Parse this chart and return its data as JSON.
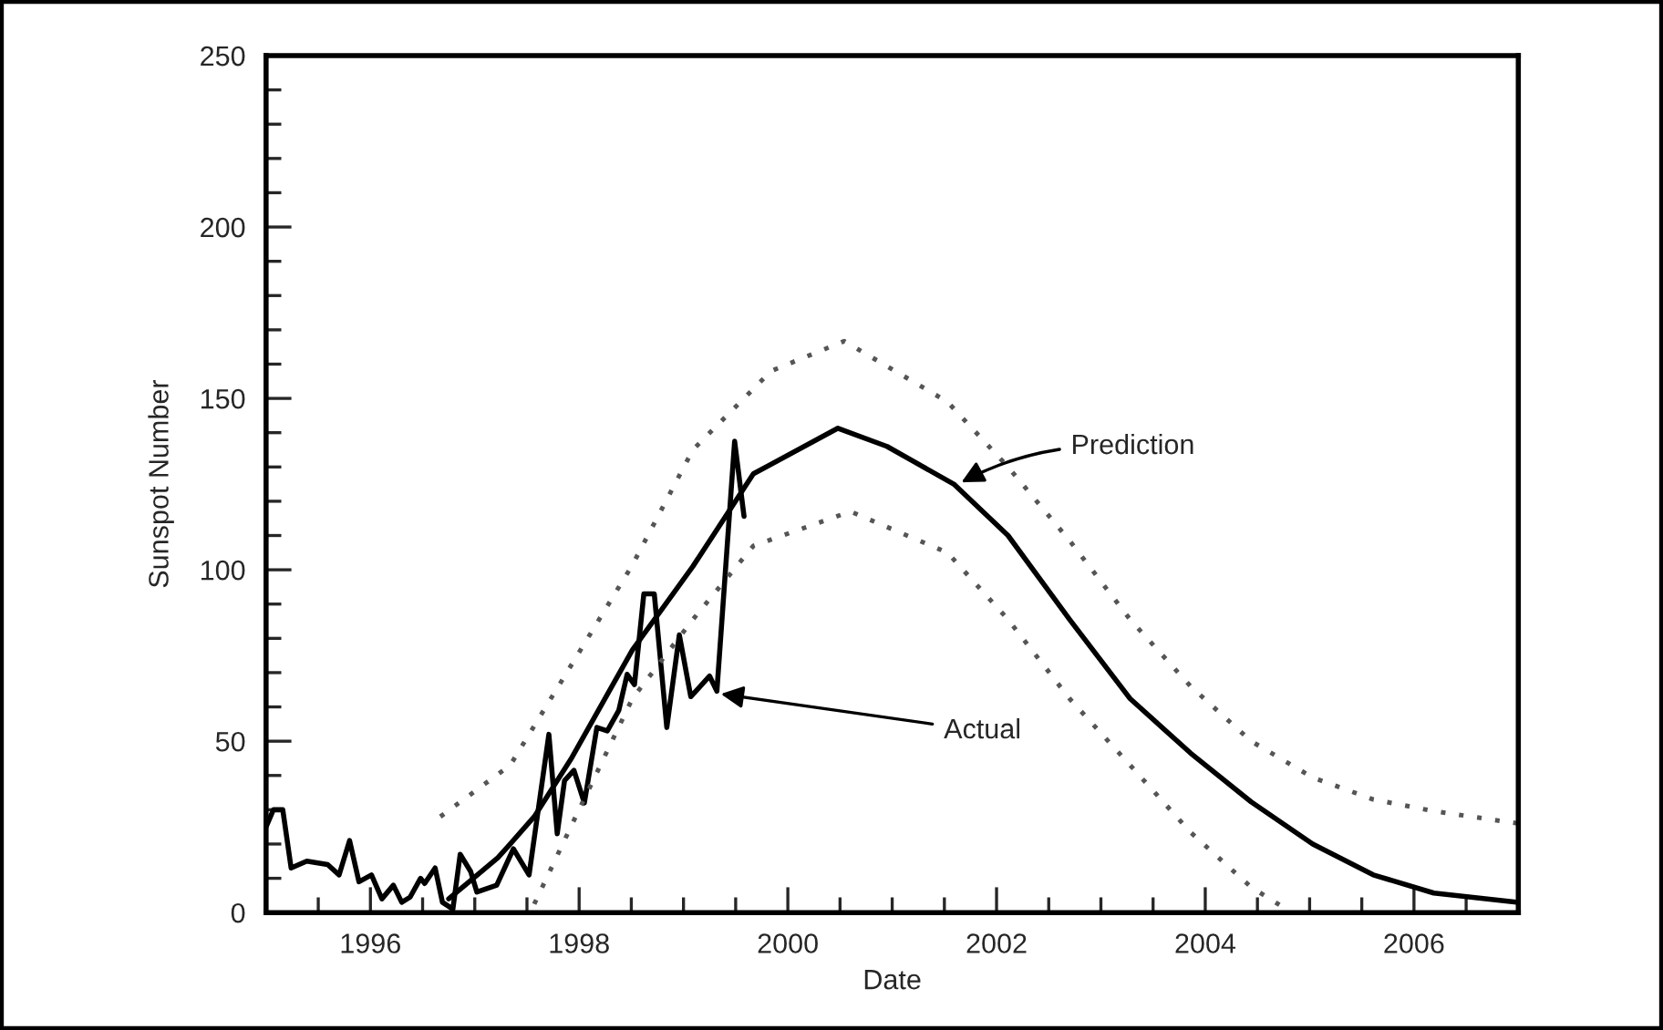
{
  "chart_data": {
    "type": "line",
    "xlabel": "Date",
    "ylabel": "Sunspot Number",
    "xlim": [
      1995,
      2007
    ],
    "ylim": [
      0,
      250
    ],
    "xticks": [
      {
        "value": 1995.5,
        "label": null
      },
      1996,
      {
        "value": 1996.5,
        "label": null
      },
      {
        "value": 1997,
        "label": null
      },
      {
        "value": 1997.5,
        "label": null
      },
      1998,
      {
        "value": 1998.5,
        "label": null
      },
      {
        "value": 1999,
        "label": null
      },
      {
        "value": 1999.5,
        "label": null
      },
      2000,
      {
        "value": 2000.5,
        "label": null
      },
      {
        "value": 2001,
        "label": null
      },
      {
        "value": 2001.5,
        "label": null
      },
      2002,
      {
        "value": 2002.5,
        "label": null
      },
      {
        "value": 2003,
        "label": null
      },
      {
        "value": 2003.5,
        "label": null
      },
      2004,
      {
        "value": 2004.5,
        "label": null
      },
      {
        "value": 2005,
        "label": null
      },
      {
        "value": 2005.5,
        "label": null
      },
      2006,
      {
        "value": 2006.5,
        "label": null
      }
    ],
    "yticks": [
      0,
      {
        "value": 10,
        "label": null
      },
      {
        "value": 20,
        "label": null
      },
      {
        "value": 30,
        "label": null
      },
      {
        "value": 40,
        "label": null
      },
      50,
      {
        "value": 60,
        "label": null
      },
      {
        "value": 70,
        "label": null
      },
      {
        "value": 80,
        "label": null
      },
      {
        "value": 90,
        "label": null
      },
      100,
      {
        "value": 110,
        "label": null
      },
      {
        "value": 120,
        "label": null
      },
      {
        "value": 130,
        "label": null
      },
      {
        "value": 140,
        "label": null
      },
      150,
      {
        "value": 160,
        "label": null
      },
      {
        "value": 170,
        "label": null
      },
      {
        "value": 180,
        "label": null
      },
      {
        "value": 190,
        "label": null
      },
      200,
      {
        "value": 210,
        "label": null
      },
      {
        "value": 220,
        "label": null
      },
      {
        "value": 230,
        "label": null
      },
      {
        "value": 240,
        "label": null
      },
      250
    ],
    "grid": false,
    "marker": "none",
    "series": [
      {
        "color": "#000000",
        "line_style": "solid",
        "x": [
          1995.0,
          1995.07,
          1995.16,
          1995.24,
          1995.39,
          1995.59,
          1995.7,
          1995.8,
          1995.89,
          1996.01,
          1996.11,
          1996.22,
          1996.3,
          1996.38,
          1996.48,
          1996.52,
          1996.62,
          1996.69,
          1996.79,
          1996.86,
          1996.96,
          1997.02,
          1997.21,
          1997.37,
          1997.52,
          1997.71,
          1997.79,
          1997.86,
          1997.95,
          1998.05,
          1998.17,
          1998.27,
          1998.38,
          1998.46,
          1998.53,
          1998.62,
          1998.72,
          1998.84,
          1998.96,
          1999.07,
          1999.25,
          1999.32,
          1999.49,
          1999.58
        ],
        "values": [
          25,
          30,
          30,
          13,
          15,
          14,
          11,
          21,
          9,
          11,
          4,
          8,
          3,
          4.5,
          10,
          8.5,
          13,
          3,
          1,
          17,
          12,
          6,
          8,
          18.6,
          11,
          52,
          23,
          38.5,
          41.5,
          32,
          54,
          53,
          59,
          69.5,
          66.5,
          93,
          93,
          54,
          81,
          63,
          69,
          64.6,
          137.5,
          115.6
        ]
      },
      {
        "color": "#000000",
        "line_style": "solid",
        "x": [
          1996.75,
          1997.22,
          1997.34,
          1997.57,
          1997.92,
          1998.51,
          1999.09,
          1999.67,
          2000.48,
          2000.95,
          2001.59,
          2002.11,
          2002.7,
          2003.28,
          2003.86,
          2004.44,
          2005.03,
          2005.61,
          2006.19,
          2007.0
        ],
        "values": [
          4,
          16,
          20,
          28,
          44.7,
          76.6,
          101,
          128,
          141.3,
          136,
          125,
          110,
          85.5,
          62.4,
          46.5,
          32.3,
          20,
          11,
          5.7,
          3
        ]
      },
      {
        "color": "#555555",
        "line_style": "dotted",
        "x": [
          1996.67,
          1997.34,
          1998.51,
          1999.09,
          1999.84,
          2000.54,
          2001.53,
          2002.11,
          2002.7,
          2003.28,
          2003.86,
          2004.44,
          2005.03,
          2005.61,
          2006.19,
          2007.0
        ],
        "values": [
          28,
          43,
          101.4,
          135,
          158,
          166.7,
          149,
          130,
          108.5,
          85.5,
          66,
          50,
          39.4,
          33,
          29.6,
          26
        ]
      },
      {
        "color": "#555555",
        "line_style": "dotted",
        "x": [
          1997.57,
          1997.92,
          1998.51,
          1999.09,
          1999.67,
          2000.6,
          2001.53,
          2002.11,
          2002.7,
          2003.28,
          2003.86,
          2004.44,
          2004.76
        ],
        "values": [
          2.5,
          25,
          62.4,
          85.5,
          107,
          117,
          105,
          85.5,
          62.4,
          43,
          23.4,
          7.4,
          1.3
        ]
      }
    ],
    "annotations": [
      {
        "text": "Prediction",
        "x": 2001.62,
        "y": 124.8
      },
      {
        "text": "Actual",
        "x": 1999.31,
        "y": 64
      }
    ]
  }
}
